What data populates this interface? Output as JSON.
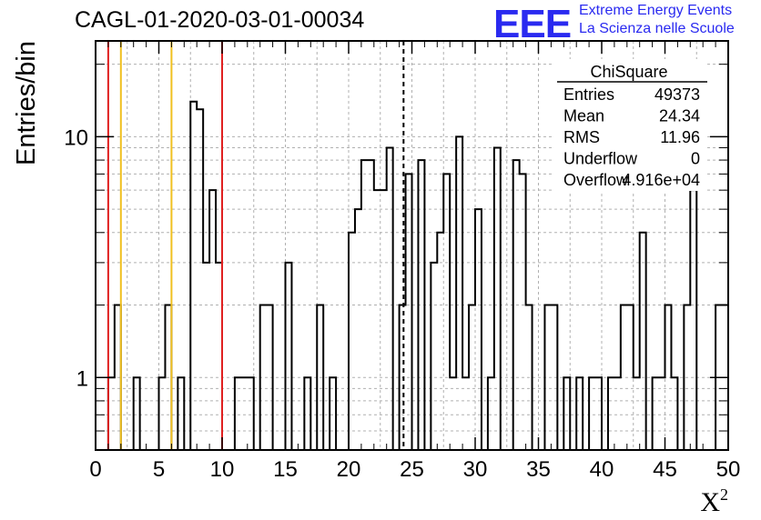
{
  "title": "CAGL-01-2020-03-01-00034",
  "logo": {
    "mark": "EEE",
    "line1": "Extreme Energy Events",
    "line2": "La Scienza nelle Scuole"
  },
  "stats": {
    "name": "ChiSquare",
    "rows": [
      {
        "label": "Entries",
        "value": "49373"
      },
      {
        "label": "Mean",
        "value": "24.34"
      },
      {
        "label": "RMS",
        "value": "11.96"
      },
      {
        "label": "Underflow",
        "value": "0"
      },
      {
        "label": "Overflow",
        "value": "4.916e+04"
      }
    ]
  },
  "colors": {
    "histogram": "#000000",
    "red_line": "#e02020",
    "yellow_line": "#f0c020",
    "grid": "#b0b0b0",
    "logo": "#2a2af0"
  },
  "chart_data": {
    "type": "histogram",
    "xlabel": "X²",
    "ylabel": "Entries/bin",
    "xlim": [
      0,
      50
    ],
    "ylim": [
      0.5,
      25
    ],
    "yscale": "log",
    "grid": true,
    "bin_width": 0.5,
    "x_ticks": [
      "0",
      "5",
      "10",
      "15",
      "20",
      "25",
      "30",
      "35",
      "40",
      "45",
      "50"
    ],
    "y_ticks": [
      {
        "value": 1,
        "label": "1"
      },
      {
        "value": 10,
        "label": "10"
      }
    ],
    "bins": [
      {
        "x": 1.0,
        "y": 1
      },
      {
        "x": 1.5,
        "y": 2
      },
      {
        "x": 3.0,
        "y": 1
      },
      {
        "x": 5.0,
        "y": 1
      },
      {
        "x": 5.5,
        "y": 2
      },
      {
        "x": 6.5,
        "y": 1
      },
      {
        "x": 7.5,
        "y": 14
      },
      {
        "x": 8.0,
        "y": 13
      },
      {
        "x": 8.5,
        "y": 3
      },
      {
        "x": 9.0,
        "y": 6
      },
      {
        "x": 9.5,
        "y": 3
      },
      {
        "x": 11.0,
        "y": 1
      },
      {
        "x": 11.5,
        "y": 1
      },
      {
        "x": 12.0,
        "y": 1
      },
      {
        "x": 13.0,
        "y": 2
      },
      {
        "x": 13.5,
        "y": 2
      },
      {
        "x": 15.0,
        "y": 3
      },
      {
        "x": 16.5,
        "y": 1
      },
      {
        "x": 17.5,
        "y": 2
      },
      {
        "x": 18.5,
        "y": 1
      },
      {
        "x": 20.0,
        "y": 4
      },
      {
        "x": 20.5,
        "y": 5
      },
      {
        "x": 21.0,
        "y": 8
      },
      {
        "x": 21.5,
        "y": 8
      },
      {
        "x": 22.0,
        "y": 6
      },
      {
        "x": 22.5,
        "y": 6
      },
      {
        "x": 23.0,
        "y": 9
      },
      {
        "x": 24.0,
        "y": 2
      },
      {
        "x": 24.5,
        "y": 7
      },
      {
        "x": 25.5,
        "y": 8
      },
      {
        "x": 26.5,
        "y": 3
      },
      {
        "x": 27.0,
        "y": 4
      },
      {
        "x": 27.5,
        "y": 7
      },
      {
        "x": 28.0,
        "y": 1
      },
      {
        "x": 28.5,
        "y": 10
      },
      {
        "x": 29.0,
        "y": 1
      },
      {
        "x": 29.5,
        "y": 2
      },
      {
        "x": 30.0,
        "y": 5
      },
      {
        "x": 31.0,
        "y": 1
      },
      {
        "x": 31.5,
        "y": 9
      },
      {
        "x": 33.0,
        "y": 8
      },
      {
        "x": 33.5,
        "y": 7
      },
      {
        "x": 34.0,
        "y": 2
      },
      {
        "x": 35.5,
        "y": 2
      },
      {
        "x": 36.0,
        "y": 2
      },
      {
        "x": 37.0,
        "y": 1
      },
      {
        "x": 38.0,
        "y": 1
      },
      {
        "x": 39.0,
        "y": 1
      },
      {
        "x": 39.5,
        "y": 1
      },
      {
        "x": 40.5,
        "y": 1
      },
      {
        "x": 41.0,
        "y": 1
      },
      {
        "x": 41.5,
        "y": 2
      },
      {
        "x": 42.0,
        "y": 2
      },
      {
        "x": 42.5,
        "y": 1
      },
      {
        "x": 43.0,
        "y": 4
      },
      {
        "x": 44.0,
        "y": 1
      },
      {
        "x": 44.5,
        "y": 1
      },
      {
        "x": 45.0,
        "y": 2
      },
      {
        "x": 45.5,
        "y": 1
      },
      {
        "x": 46.5,
        "y": 2
      },
      {
        "x": 47.0,
        "y": 6
      },
      {
        "x": 49.0,
        "y": 2
      },
      {
        "x": 49.5,
        "y": 2
      }
    ],
    "vertical_lines": [
      {
        "x": 1.0,
        "style": "red"
      },
      {
        "x": 2.0,
        "style": "yellow"
      },
      {
        "x": 6.0,
        "style": "yellow"
      },
      {
        "x": 10.0,
        "style": "red"
      },
      {
        "x": 24.34,
        "style": "mean-dashed"
      }
    ]
  }
}
